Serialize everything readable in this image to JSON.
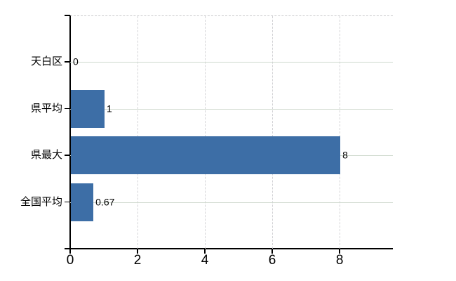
{
  "colors": {
    "bar": "#3d6ea6",
    "axis": "#000000",
    "grid_horizontal": "#cfd9ce",
    "grid_vertical": "#d3d3d6",
    "plot_top_border": "#c9c9cc",
    "background": "#ffffff",
    "text": "#000000"
  },
  "chart_data": {
    "type": "bar",
    "orientation": "horizontal",
    "title": "",
    "xlabel": "",
    "ylabel": "",
    "categories": [
      "天白区",
      "県平均",
      "県最大",
      "全国平均"
    ],
    "values": [
      0,
      1,
      8,
      0.67
    ],
    "value_labels": [
      "0",
      "1",
      "8",
      "0.67"
    ],
    "x_ticks": [
      0,
      2,
      4,
      6,
      8
    ],
    "x_tick_labels": [
      "0",
      "2",
      "4",
      "6",
      "8"
    ],
    "xlim": [
      0,
      9.58
    ],
    "grid": "on",
    "legend": "none"
  }
}
